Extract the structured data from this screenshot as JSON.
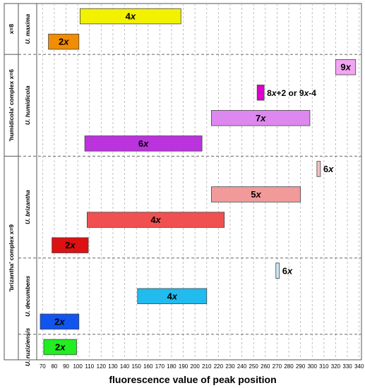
{
  "chart_data": {
    "type": "bar",
    "xlabel": "fluorescence value of peak position",
    "xlim": [
      65,
      342
    ],
    "xticks": [
      70,
      80,
      90,
      100,
      110,
      120,
      130,
      140,
      150,
      160,
      170,
      180,
      190,
      200,
      210,
      220,
      230,
      240,
      250,
      260,
      270,
      280,
      290,
      300,
      310,
      320,
      330,
      340
    ],
    "groups": [
      {
        "label": "x=8",
        "italic_label": false,
        "rows": [
          "U. maxima"
        ]
      },
      {
        "label": "'humidicola' complex x=6",
        "italic_label": false,
        "rows": [
          "U. humidicola"
        ]
      },
      {
        "label": "'brizantha' complex x=9",
        "italic_label": false,
        "rows": [
          "U. brizantha",
          "U. decumbens",
          "U. ruziziensis"
        ]
      }
    ],
    "rows": [
      {
        "name": "U. maxima",
        "lanes": 2
      },
      {
        "name": "U. humidicola",
        "lanes": 4
      },
      {
        "name": "U. brizantha",
        "lanes": 4
      },
      {
        "name": "U. decumbens",
        "lanes": 3
      },
      {
        "name": "U. ruziziensis",
        "lanes": 1
      }
    ],
    "bars": [
      {
        "species": "U. maxima",
        "label": "4x",
        "start": 102,
        "end": 188,
        "lane": 0,
        "color": "#f2f200",
        "label_color": "#000000"
      },
      {
        "species": "U. maxima",
        "label": "2x",
        "start": 75,
        "end": 101,
        "lane": 1,
        "color": "#f28c00",
        "label_color": "#000000"
      },
      {
        "species": "U. humidicola",
        "label": "9x",
        "start": 320,
        "end": 337,
        "lane": 0,
        "color": "#f2a6f2",
        "label_color": "#000000"
      },
      {
        "species": "U. humidicola",
        "label": "8x+2 or 9x-4",
        "start": 253,
        "end": 259,
        "lane": 1,
        "color": "#dd00cc",
        "label_color": "#000000",
        "label_outside": true
      },
      {
        "species": "U. humidicola",
        "label": "7x",
        "start": 214,
        "end": 298,
        "lane": 2,
        "color": "#dd88ee",
        "label_color": "#000000"
      },
      {
        "species": "U. humidicola",
        "label": "6x",
        "start": 106,
        "end": 206,
        "lane": 3,
        "color": "#bb33dd",
        "label_color": "#000000"
      },
      {
        "species": "U. brizantha",
        "label": "6x",
        "start": 304,
        "end": 307,
        "lane": 0,
        "color": "#f4c0c0",
        "label_color": "#000000",
        "label_outside": true
      },
      {
        "species": "U. brizantha",
        "label": "5x",
        "start": 214,
        "end": 290,
        "lane": 1,
        "color": "#f29a9a",
        "label_color": "#000000"
      },
      {
        "species": "U. brizantha",
        "label": "4x",
        "start": 108,
        "end": 225,
        "lane": 2,
        "color": "#f05050",
        "label_color": "#000000"
      },
      {
        "species": "U. brizantha",
        "label": "2x",
        "start": 78,
        "end": 109,
        "lane": 3,
        "color": "#dd1111",
        "label_color": "#000000"
      },
      {
        "species": "U. decumbens",
        "label": "6x",
        "start": 269,
        "end": 272,
        "lane": 0,
        "color": "#cce6f4",
        "label_color": "#000000",
        "label_outside": true
      },
      {
        "species": "U. decumbens",
        "label": "4x",
        "start": 151,
        "end": 210,
        "lane": 1,
        "color": "#22bbee",
        "label_color": "#000000"
      },
      {
        "species": "U. decumbens",
        "label": "2x",
        "start": 68,
        "end": 101,
        "lane": 2,
        "color": "#1155ee",
        "label_color": "#000000"
      },
      {
        "species": "U. ruziziensis",
        "label": "2x",
        "start": 71,
        "end": 99,
        "lane": 0,
        "color": "#22ee22",
        "label_color": "#000000"
      }
    ],
    "grid": true
  }
}
